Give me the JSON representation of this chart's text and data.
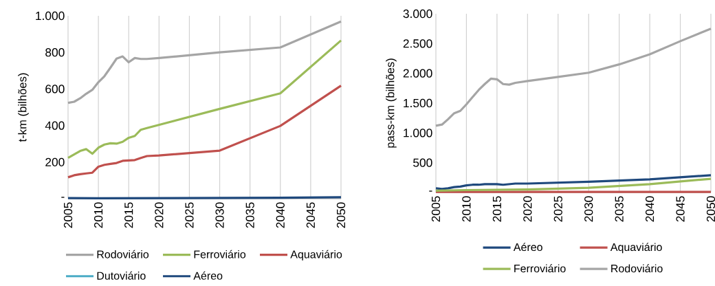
{
  "chart_data": [
    {
      "type": "line",
      "ylabel": "t-km (bilhões)",
      "xlim": [
        2005,
        2050
      ],
      "ylim": [
        0,
        1000
      ],
      "xticks": [
        2005,
        2010,
        2015,
        2020,
        2025,
        2030,
        2035,
        2040,
        2045,
        2050
      ],
      "yticks": [
        {
          "value": 0,
          "label": "-"
        },
        200,
        400,
        600,
        800,
        {
          "value": 1000,
          "label": "1.000"
        }
      ],
      "grid": "x",
      "legend": "bottom",
      "line_style": "solid",
      "marker": "none",
      "series": [
        {
          "name": "Rodoviário",
          "color": "#a5a5a5",
          "x": [
            2005,
            2006,
            2007,
            2008,
            2009,
            2010,
            2011,
            2012,
            2013,
            2014,
            2015,
            2016,
            2017,
            2018,
            2020,
            2030,
            2040,
            2050
          ],
          "values": [
            524,
            530,
            549,
            574,
            595,
            637,
            670,
            717,
            766,
            778,
            746,
            769,
            764,
            764,
            769,
            800,
            827,
            969
          ]
        },
        {
          "name": "Ferroviário",
          "color": "#9bbb59",
          "x": [
            2005,
            2006,
            2007,
            2008,
            2009,
            2010,
            2011,
            2012,
            2013,
            2014,
            2015,
            2016,
            2017,
            2018,
            2030,
            2040,
            2050
          ],
          "values": [
            223,
            242,
            261,
            271,
            246,
            279,
            296,
            303,
            301,
            311,
            333,
            343,
            377,
            386,
            491,
            576,
            865
          ]
        },
        {
          "name": "Aquaviário",
          "color": "#c0504d",
          "x": [
            2005,
            2006,
            2007,
            2008,
            2009,
            2010,
            2011,
            2012,
            2013,
            2014,
            2015,
            2016,
            2017,
            2018,
            2020,
            2030,
            2040,
            2050
          ],
          "values": [
            117,
            128,
            134,
            138,
            142,
            175,
            185,
            190,
            195,
            207,
            209,
            211,
            223,
            233,
            236,
            263,
            398,
            618
          ]
        },
        {
          "name": "Dutoviário",
          "color": "#4bacc6"
        },
        {
          "name": "Aéreo",
          "color": "#1f497d",
          "x": [
            2005,
            2010,
            2020,
            2030,
            2040,
            2050
          ],
          "values": [
            3,
            2,
            3,
            4,
            5,
            8
          ]
        }
      ]
    },
    {
      "type": "line",
      "ylabel": "pass-km (bilhões)",
      "xlim": [
        2005,
        2050
      ],
      "ylim": [
        0,
        3000
      ],
      "xticks": [
        2005,
        2010,
        2015,
        2020,
        2025,
        2030,
        2035,
        2040,
        2045,
        2050
      ],
      "yticks": [
        {
          "value": 0,
          "label": "-"
        },
        500,
        {
          "value": 1000,
          "label": "1.000"
        },
        {
          "value": 1500,
          "label": "1.500"
        },
        {
          "value": 2000,
          "label": "2.000"
        },
        {
          "value": 2500,
          "label": "2.500"
        },
        {
          "value": 3000,
          "label": "3.000"
        }
      ],
      "grid": "x",
      "legend": "bottom",
      "line_style": "solid",
      "marker": "none",
      "series": [
        {
          "name": "Aéreo",
          "color": "#1f497d",
          "x": [
            2005,
            2006,
            2007,
            2008,
            2009,
            2010,
            2011,
            2012,
            2013,
            2014,
            2015,
            2016,
            2017,
            2018,
            2020,
            2030,
            2040,
            2050
          ],
          "values": [
            70,
            60,
            70,
            90,
            100,
            120,
            130,
            130,
            140,
            140,
            140,
            130,
            140,
            150,
            150,
            180,
            220,
            290
          ]
        },
        {
          "name": "Aquaviário",
          "color": "#c0504d",
          "x": [
            2005,
            2050
          ],
          "values": [
            10,
            10
          ]
        },
        {
          "name": "Ferroviário",
          "color": "#9bbb59",
          "x": [
            2005,
            2010,
            2020,
            2030,
            2040,
            2050
          ],
          "values": [
            30,
            40,
            50,
            80,
            140,
            230
          ]
        },
        {
          "name": "Rodoviário",
          "color": "#a5a5a5",
          "x": [
            2005,
            2006,
            2007,
            2008,
            2009,
            2010,
            2011,
            2012,
            2013,
            2014,
            2015,
            2016,
            2017,
            2018,
            2020,
            2025,
            2030,
            2035,
            2040,
            2045,
            2050
          ],
          "values": [
            1120,
            1140,
            1230,
            1330,
            1370,
            1480,
            1600,
            1720,
            1820,
            1910,
            1900,
            1820,
            1810,
            1840,
            1870,
            1940,
            2010,
            2150,
            2320,
            2540,
            2750
          ]
        }
      ]
    }
  ]
}
